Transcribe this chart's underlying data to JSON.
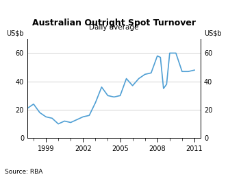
{
  "title": "Australian Outright Spot Turnover",
  "subtitle": "Daily average",
  "ylabel_left": "US$b",
  "ylabel_right": "US$b",
  "source": "Source: RBA",
  "line_color": "#4f9fd4",
  "line_width": 1.2,
  "background_color": "#ffffff",
  "grid_color": "#cccccc",
  "ylim": [
    0,
    70
  ],
  "yticks": [
    0,
    20,
    40,
    60
  ],
  "xlim_start": 1997.5,
  "xlim_end": 2011.5,
  "xtick_labels": [
    "1999",
    "2002",
    "2005",
    "2008",
    "2011"
  ],
  "xtick_positions": [
    1999,
    2002,
    2005,
    2008,
    2011
  ],
  "x": [
    1997.5,
    1998.0,
    1998.5,
    1999.0,
    1999.5,
    2000.0,
    2000.5,
    2001.0,
    2001.5,
    2002.0,
    2002.5,
    2003.0,
    2003.5,
    2004.0,
    2004.5,
    2005.0,
    2005.5,
    2006.0,
    2006.5,
    2007.0,
    2007.5,
    2008.0,
    2008.25,
    2008.5,
    2008.75,
    2009.0,
    2009.5,
    2010.0,
    2010.5,
    2011.0
  ],
  "y": [
    21,
    24,
    18,
    15,
    14,
    10,
    12,
    11,
    13,
    15,
    16,
    25,
    36,
    30,
    29,
    30,
    42,
    37,
    42,
    45,
    46,
    58,
    57,
    35,
    38,
    60,
    60,
    47,
    47,
    48
  ]
}
